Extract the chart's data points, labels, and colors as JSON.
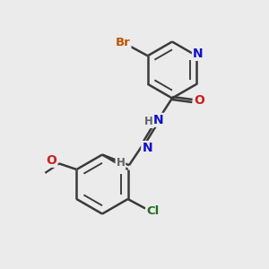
{
  "background_color": "#ebebeb",
  "atom_colors": {
    "C": "#3a3a3a",
    "N": "#1010cc",
    "O": "#cc2020",
    "Br": "#bb5500",
    "Cl": "#207020",
    "H": "#606060"
  },
  "bond_color": "#3a3a3a",
  "bond_width": 1.8,
  "figsize": [
    3.0,
    3.0
  ],
  "dpi": 100
}
